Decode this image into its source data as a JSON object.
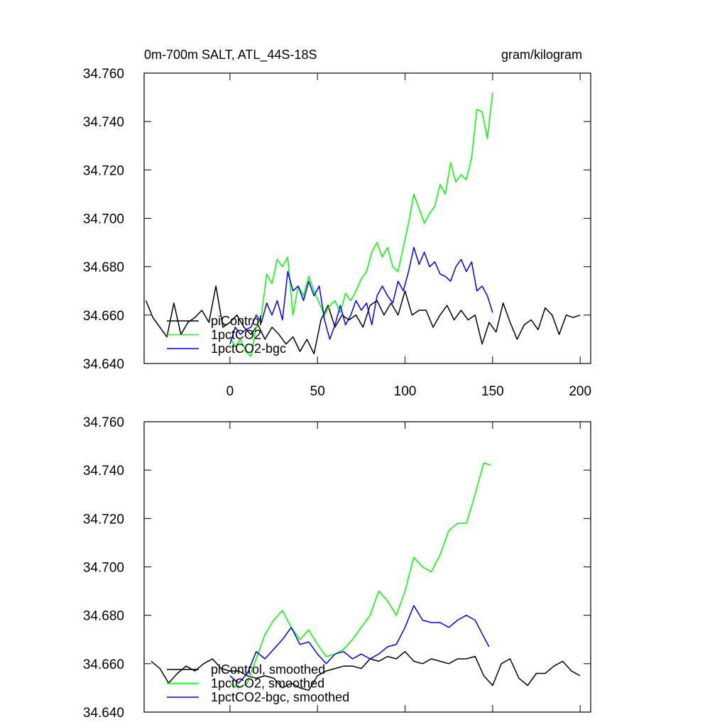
{
  "chart_data": [
    {
      "type": "line",
      "title": "0m-700m SALT, ATL_44S-18S",
      "units": "gram/kilogram",
      "xlim": [
        -49,
        206
      ],
      "xticks": [
        0,
        50,
        100,
        150,
        200
      ],
      "ylim": [
        34.64,
        34.76
      ],
      "yticks": [
        {
          "value": 34.64,
          "label": "34.640"
        },
        {
          "value": 34.66,
          "label": "34.660"
        },
        {
          "value": 34.68,
          "label": "34.680"
        },
        {
          "value": 34.7,
          "label": "34.700"
        },
        {
          "value": 34.72,
          "label": "34.720"
        },
        {
          "value": 34.74,
          "label": "34.740"
        },
        {
          "value": 34.76,
          "label": "34.760"
        }
      ],
      "legend": "bottom-left",
      "series": [
        {
          "name": "piControl",
          "color": "#000000",
          "x": [
            -48,
            -44,
            -40,
            -36,
            -32,
            -28,
            -24,
            -20,
            -16,
            -12,
            -8,
            -4,
            0,
            4,
            8,
            12,
            16,
            20,
            24,
            28,
            32,
            36,
            40,
            44,
            48,
            52,
            56,
            60,
            64,
            68,
            72,
            76,
            80,
            84,
            88,
            92,
            96,
            100,
            104,
            108,
            112,
            116,
            120,
            124,
            128,
            132,
            136,
            140,
            144,
            148,
            152,
            156,
            160,
            164,
            168,
            172,
            176,
            180,
            184,
            188,
            192,
            196,
            200
          ],
          "values": [
            34.666,
            34.659,
            34.655,
            34.651,
            34.665,
            34.652,
            34.657,
            34.659,
            34.662,
            34.657,
            34.672,
            34.655,
            34.657,
            34.66,
            34.655,
            34.652,
            34.656,
            34.65,
            34.655,
            34.652,
            34.648,
            34.651,
            34.645,
            34.65,
            34.644,
            34.658,
            34.664,
            34.655,
            34.66,
            34.658,
            34.66,
            34.655,
            34.664,
            34.666,
            34.66,
            34.665,
            34.66,
            34.67,
            34.66,
            34.662,
            34.662,
            34.655,
            34.66,
            34.664,
            34.658,
            34.662,
            34.658,
            34.66,
            34.648,
            34.657,
            34.653,
            34.665,
            34.657,
            34.65,
            34.656,
            34.658,
            34.654,
            34.663,
            34.66,
            34.652,
            34.66,
            34.659,
            34.66
          ]
        },
        {
          "name": "1pctCO2",
          "color": "#00ff00",
          "x": [
            0,
            3,
            6,
            9,
            12,
            15,
            18,
            21,
            24,
            27,
            30,
            33,
            36,
            39,
            42,
            45,
            48,
            51,
            54,
            57,
            60,
            63,
            66,
            69,
            72,
            75,
            78,
            81,
            84,
            87,
            90,
            93,
            96,
            99,
            102,
            105,
            108,
            111,
            114,
            117,
            120,
            123,
            126,
            129,
            132,
            135,
            138,
            141,
            144,
            147,
            150
          ],
          "values": [
            34.651,
            34.647,
            34.65,
            34.645,
            34.643,
            34.655,
            34.66,
            34.677,
            34.673,
            34.683,
            34.68,
            34.684,
            34.66,
            34.672,
            34.668,
            34.676,
            34.67,
            34.665,
            34.66,
            34.664,
            34.666,
            34.661,
            34.669,
            34.666,
            34.67,
            34.675,
            34.678,
            34.686,
            34.69,
            34.684,
            34.688,
            34.68,
            34.678,
            34.688,
            34.698,
            34.71,
            34.704,
            34.698,
            34.702,
            34.705,
            34.714,
            34.71,
            34.723,
            34.715,
            34.718,
            34.716,
            34.725,
            34.745,
            34.744,
            34.733,
            34.752
          ]
        },
        {
          "name": "1pctCO2-bgc",
          "color": "#0000ff",
          "x": [
            0,
            3,
            6,
            9,
            12,
            15,
            18,
            21,
            24,
            27,
            30,
            33,
            36,
            39,
            42,
            45,
            48,
            51,
            54,
            57,
            60,
            63,
            66,
            69,
            72,
            75,
            78,
            81,
            84,
            87,
            90,
            93,
            96,
            99,
            102,
            105,
            108,
            111,
            114,
            117,
            120,
            123,
            126,
            129,
            132,
            135,
            138,
            141,
            144,
            147,
            150
          ],
          "values": [
            34.648,
            34.655,
            34.652,
            34.654,
            34.655,
            34.66,
            34.657,
            34.665,
            34.66,
            34.666,
            34.658,
            34.678,
            34.67,
            34.672,
            34.666,
            34.674,
            34.668,
            34.672,
            34.658,
            34.65,
            34.656,
            34.664,
            34.656,
            34.66,
            34.666,
            34.662,
            34.665,
            34.656,
            34.668,
            34.672,
            34.668,
            34.665,
            34.674,
            34.67,
            34.678,
            34.688,
            34.681,
            34.686,
            34.68,
            34.682,
            34.677,
            34.676,
            34.674,
            34.68,
            34.683,
            34.678,
            34.682,
            34.67,
            34.672,
            34.668,
            34.661
          ]
        }
      ]
    },
    {
      "type": "line",
      "xlim": [
        -49,
        206
      ],
      "xticks": [
        0,
        50,
        100,
        150,
        200
      ],
      "xtick_labels": false,
      "ylim": [
        34.64,
        34.76
      ],
      "yticks": [
        {
          "value": 34.64,
          "label": "34.640"
        },
        {
          "value": 34.66,
          "label": "34.660"
        },
        {
          "value": 34.68,
          "label": "34.680"
        },
        {
          "value": 34.7,
          "label": "34.700"
        },
        {
          "value": 34.72,
          "label": "34.720"
        },
        {
          "value": 34.74,
          "label": "34.740"
        },
        {
          "value": 34.76,
          "label": "34.760"
        }
      ],
      "legend": "bottom-left",
      "series": [
        {
          "name": "piControl, smoothed",
          "color": "#000000",
          "x": [
            -45,
            -40,
            -35,
            -30,
            -25,
            -20,
            -15,
            -10,
            -5,
            0,
            5,
            10,
            15,
            20,
            25,
            30,
            35,
            40,
            45,
            50,
            55,
            60,
            65,
            70,
            75,
            80,
            85,
            90,
            95,
            100,
            105,
            110,
            115,
            120,
            125,
            130,
            135,
            140,
            145,
            150,
            155,
            160,
            165,
            170,
            175,
            180,
            185,
            190,
            195,
            200
          ],
          "values": [
            34.661,
            34.658,
            34.652,
            34.656,
            34.659,
            34.657,
            34.66,
            34.662,
            34.658,
            34.657,
            34.657,
            34.655,
            34.654,
            34.655,
            34.654,
            34.65,
            34.652,
            34.65,
            34.649,
            34.655,
            34.657,
            34.658,
            34.659,
            34.659,
            34.658,
            34.662,
            34.661,
            34.663,
            34.662,
            34.665,
            34.661,
            34.66,
            34.662,
            34.661,
            34.66,
            34.662,
            34.662,
            34.663,
            34.655,
            34.651,
            34.66,
            34.662,
            34.654,
            34.651,
            34.656,
            34.656,
            34.659,
            34.661,
            34.657,
            34.655
          ]
        },
        {
          "name": "1pctCO2, smoothed",
          "color": "#00ff00",
          "x": [
            0,
            5,
            10,
            15,
            20,
            25,
            30,
            35,
            40,
            45,
            50,
            55,
            60,
            65,
            70,
            75,
            80,
            85,
            90,
            95,
            100,
            105,
            110,
            115,
            120,
            125,
            130,
            135,
            140,
            145,
            149
          ],
          "values": [
            34.652,
            34.65,
            34.652,
            34.662,
            34.672,
            34.678,
            34.682,
            34.675,
            34.67,
            34.674,
            34.668,
            34.663,
            34.664,
            34.666,
            34.67,
            34.675,
            34.68,
            34.69,
            34.686,
            34.68,
            34.69,
            34.704,
            34.7,
            34.698,
            34.705,
            34.715,
            34.718,
            34.718,
            34.73,
            34.743,
            34.742
          ]
        },
        {
          "name": "1pctCO2-bgc, smoothed",
          "color": "#0000ff",
          "x": [
            0,
            5,
            10,
            15,
            20,
            25,
            30,
            35,
            40,
            45,
            50,
            55,
            60,
            65,
            70,
            75,
            80,
            85,
            90,
            95,
            100,
            105,
            110,
            115,
            120,
            125,
            130,
            135,
            140,
            145,
            148
          ],
          "values": [
            34.655,
            34.652,
            34.656,
            34.665,
            34.662,
            34.666,
            34.67,
            34.675,
            34.668,
            34.669,
            34.664,
            34.66,
            34.664,
            34.665,
            34.662,
            34.664,
            34.662,
            34.664,
            34.667,
            34.668,
            34.675,
            34.684,
            34.678,
            34.677,
            34.677,
            34.675,
            34.678,
            34.68,
            34.678,
            34.671,
            34.667
          ]
        }
      ]
    }
  ]
}
